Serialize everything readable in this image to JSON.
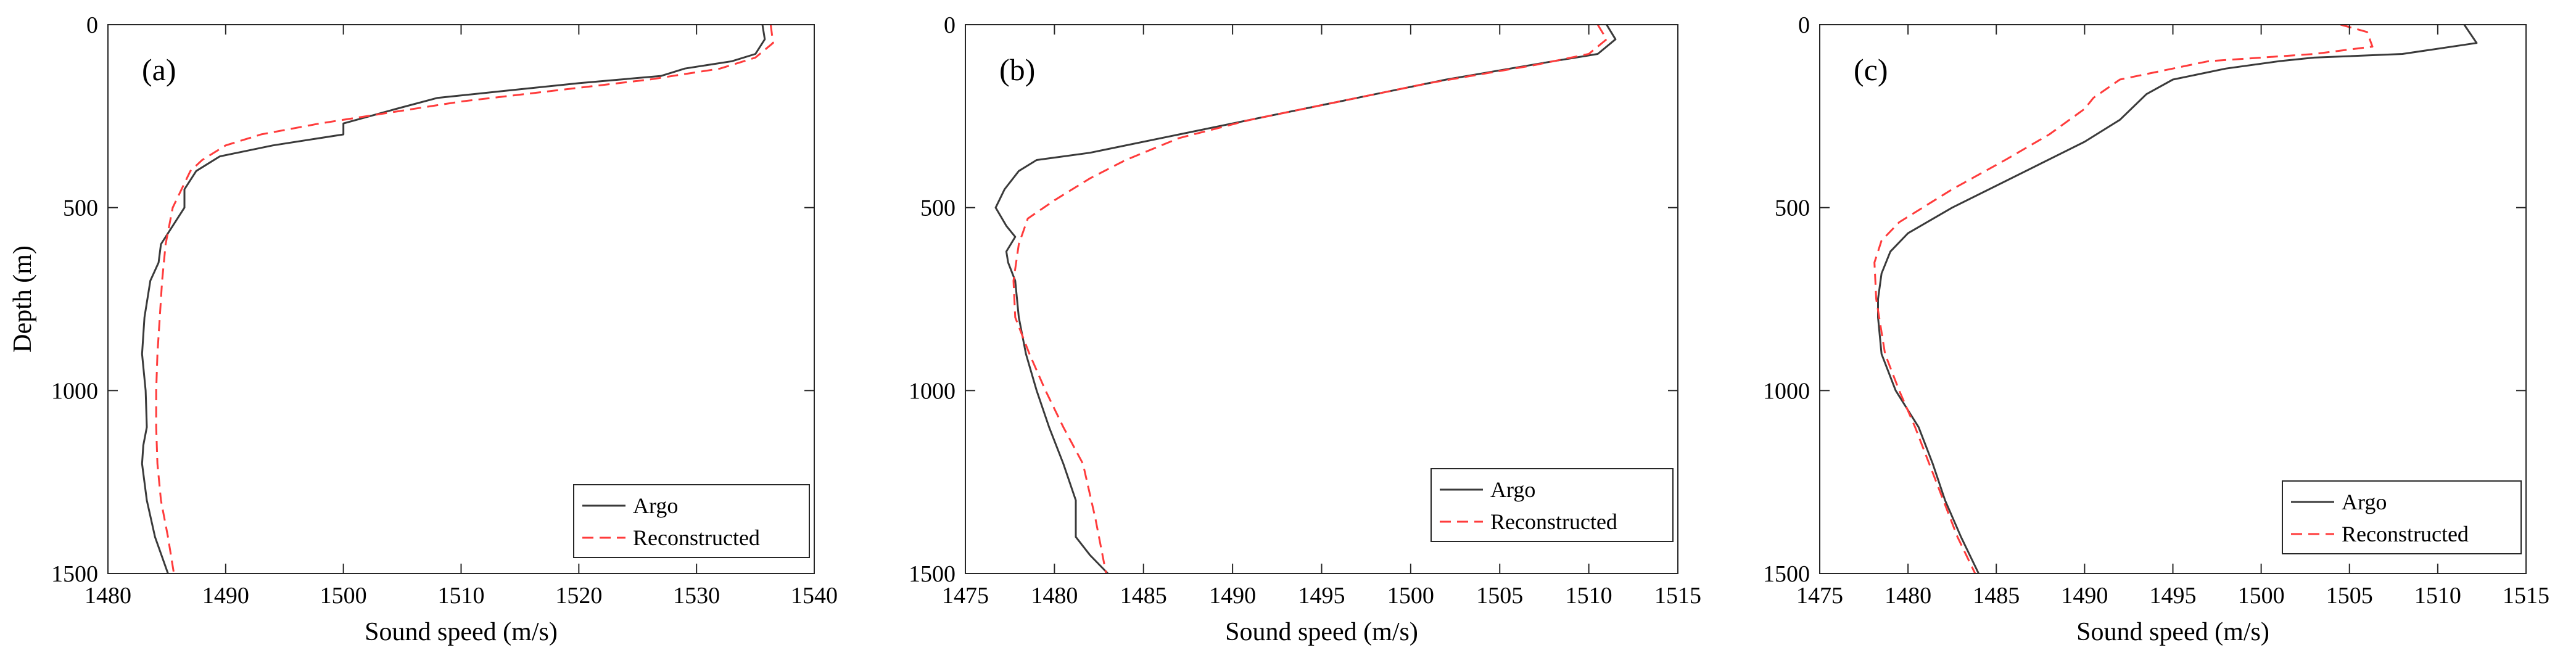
{
  "chart_data": [
    {
      "type": "line",
      "panel_label": "(a)",
      "xlabel": "Sound speed (m/s)",
      "ylabel": "Depth (m)",
      "xlim": [
        1480,
        1540
      ],
      "ylim": [
        0,
        1500
      ],
      "y_reversed": true,
      "xticks": [
        1480,
        1490,
        1500,
        1510,
        1520,
        1530,
        1540
      ],
      "yticks": [
        0,
        500,
        1000,
        1500
      ],
      "legend_position": "bottom-right",
      "series": [
        {
          "name": "Argo",
          "color": "#3a3a3a",
          "dash": "solid",
          "x": [
            1535.6,
            1535.8,
            1535.0,
            1533.0,
            1529.0,
            1527.0,
            1520.0,
            1514.0,
            1508.0,
            1504.5,
            1500.0,
            1500.0,
            1494.0,
            1489.5,
            1487.5,
            1486.5,
            1486.5,
            1485.5,
            1484.5,
            1484.3,
            1483.6,
            1483.1,
            1482.9,
            1483.2,
            1483.3,
            1483.0,
            1482.9,
            1483.3,
            1484.0,
            1485.1
          ],
          "y": [
            0,
            40,
            80,
            100,
            120,
            140,
            160,
            180,
            200,
            230,
            270,
            300,
            330,
            360,
            400,
            450,
            500,
            550,
            600,
            650,
            700,
            800,
            900,
            1000,
            1100,
            1150,
            1200,
            1300,
            1400,
            1500
          ]
        },
        {
          "name": "Reconstructed",
          "color": "#ff3b3b",
          "dash": "dashed",
          "x": [
            1536.3,
            1536.5,
            1535.0,
            1532.0,
            1526.0,
            1518.0,
            1510.0,
            1504.0,
            1498.0,
            1493.0,
            1490.0,
            1488.0,
            1487.0,
            1485.5,
            1484.9,
            1484.6,
            1484.4,
            1484.2,
            1484.1,
            1484.1,
            1484.2,
            1484.5,
            1485.1,
            1485.6
          ],
          "y": [
            0,
            50,
            90,
            120,
            150,
            180,
            210,
            240,
            270,
            300,
            330,
            370,
            400,
            500,
            600,
            700,
            800,
            900,
            1000,
            1100,
            1200,
            1300,
            1400,
            1500
          ]
        }
      ]
    },
    {
      "type": "line",
      "panel_label": "(b)",
      "xlabel": "Sound speed (m/s)",
      "ylabel": "",
      "xlim": [
        1475,
        1515
      ],
      "ylim": [
        0,
        1500
      ],
      "y_reversed": true,
      "xticks": [
        1475,
        1480,
        1485,
        1490,
        1495,
        1500,
        1505,
        1510,
        1515
      ],
      "yticks": [
        0,
        500,
        1000,
        1500
      ],
      "legend_position": "bottom-right",
      "series": [
        {
          "name": "Argo",
          "color": "#3a3a3a",
          "dash": "solid",
          "x": [
            1511.0,
            1511.5,
            1510.5,
            1508.0,
            1502.0,
            1497.0,
            1492.0,
            1487.0,
            1482.0,
            1479.0,
            1478.0,
            1477.2,
            1476.7,
            1477.3,
            1477.8,
            1477.3,
            1477.4,
            1477.8,
            1478.0,
            1478.4,
            1479.0,
            1479.7,
            1480.5,
            1481.2,
            1481.2,
            1482.0,
            1483.0
          ],
          "y": [
            0,
            40,
            80,
            100,
            150,
            200,
            250,
            300,
            350,
            370,
            400,
            450,
            500,
            550,
            580,
            620,
            650,
            700,
            800,
            900,
            1000,
            1100,
            1200,
            1300,
            1400,
            1450,
            1500
          ]
        },
        {
          "name": "Reconstructed",
          "color": "#ff3b3b",
          "dash": "dashed",
          "x": [
            1510.5,
            1511.0,
            1510.0,
            1507.0,
            1501.0,
            1496.0,
            1491.0,
            1487.0,
            1484.0,
            1482.0,
            1480.0,
            1478.5,
            1478.0,
            1477.7,
            1477.8,
            1478.6,
            1479.5,
            1480.5,
            1481.6,
            1482.3,
            1482.9
          ],
          "y": [
            0,
            40,
            80,
            110,
            160,
            210,
            260,
            310,
            370,
            420,
            480,
            530,
            600,
            700,
            800,
            900,
            1000,
            1100,
            1200,
            1350,
            1500
          ]
        }
      ]
    },
    {
      "type": "line",
      "panel_label": "(c)",
      "xlabel": "Sound speed (m/s)",
      "ylabel": "",
      "xlim": [
        1475,
        1515
      ],
      "ylim": [
        0,
        1500
      ],
      "y_reversed": true,
      "xticks": [
        1475,
        1480,
        1485,
        1490,
        1495,
        1500,
        1505,
        1510,
        1515
      ],
      "yticks": [
        0,
        500,
        1000,
        1500
      ],
      "legend_position": "bottom-right",
      "series": [
        {
          "name": "Argo",
          "color": "#3a3a3a",
          "dash": "solid",
          "x": [
            1511.5,
            1512.2,
            1508.0,
            1503.0,
            1501.0,
            1498.0,
            1495.0,
            1493.5,
            1492.0,
            1490.0,
            1487.5,
            1485.0,
            1482.5,
            1480.0,
            1479.0,
            1478.5,
            1478.3,
            1478.3,
            1478.5,
            1479.3,
            1480.6,
            1481.4,
            1482.1,
            1483.0,
            1484.0
          ],
          "y": [
            0,
            50,
            80,
            90,
            100,
            120,
            150,
            190,
            260,
            320,
            380,
            440,
            500,
            570,
            620,
            680,
            750,
            800,
            900,
            1000,
            1100,
            1200,
            1300,
            1400,
            1500
          ]
        },
        {
          "name": "Reconstructed",
          "color": "#ff3b3b",
          "dash": "dashed",
          "x": [
            1504.5,
            1506.0,
            1506.3,
            1503.0,
            1497.0,
            1492.0,
            1490.5,
            1490.0,
            1488.0,
            1485.5,
            1482.5,
            1479.5,
            1478.5,
            1478.1,
            1478.2,
            1478.7,
            1479.5,
            1480.4,
            1481.2,
            1482.0,
            1482.8,
            1483.8
          ],
          "y": [
            0,
            20,
            60,
            80,
            100,
            150,
            200,
            230,
            300,
            370,
            450,
            540,
            590,
            650,
            750,
            900,
            1000,
            1100,
            1200,
            1300,
            1400,
            1500
          ]
        }
      ]
    }
  ]
}
